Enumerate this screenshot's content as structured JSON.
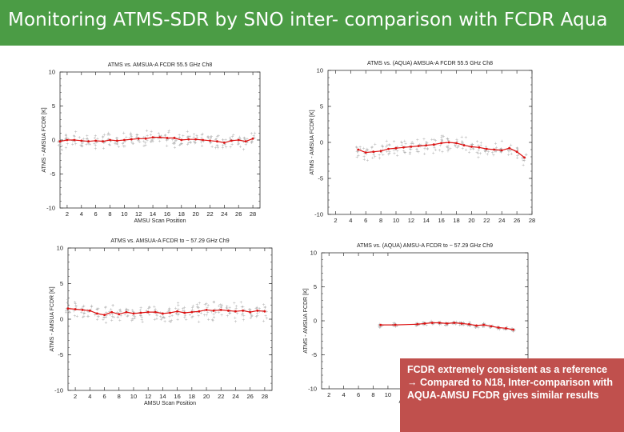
{
  "slide": {
    "title": "Monitoring ATMS-SDR by SNO inter- comparison with FCDR Aqua",
    "callout": "FCDR extremely consistent as a reference → Compared to N18, Inter-comparison with AQUA-AMSU FCDR gives similar results"
  },
  "colors": {
    "title_bg": "#4b9c45",
    "callout_bg": "#c0504d",
    "mean_line": "#dd1111",
    "scatter": "#b0b0b0"
  },
  "chart_data": [
    {
      "type": "line",
      "title": "ATMS  vs. AMSUA-A FCDR 55.5 GHz Ch8",
      "xlabel": "AMSU Scan Position",
      "ylabel": "ATMS - AMSUA FCDR [K]",
      "xlim": [
        1,
        29
      ],
      "ylim": [
        -10,
        10
      ],
      "xticks": [
        2,
        4,
        6,
        8,
        10,
        12,
        14,
        16,
        18,
        20,
        22,
        24,
        26,
        28
      ],
      "yticks": [
        10,
        5,
        0,
        -5,
        -10
      ],
      "x": [
        1,
        2,
        3,
        4,
        5,
        6,
        7,
        8,
        9,
        10,
        11,
        12,
        13,
        14,
        15,
        16,
        17,
        18,
        19,
        20,
        21,
        22,
        23,
        24,
        25,
        26,
        27,
        28
      ],
      "mean": [
        -0.2,
        0.0,
        0.0,
        -0.1,
        -0.2,
        -0.1,
        -0.2,
        0.0,
        -0.1,
        0.0,
        0.1,
        0.2,
        0.2,
        0.4,
        0.4,
        0.3,
        0.3,
        0.0,
        0.1,
        0.1,
        0.0,
        -0.1,
        -0.2,
        -0.4,
        -0.1,
        0.0,
        -0.2,
        0.2
      ],
      "spread": 1.0
    },
    {
      "type": "line",
      "title": "ATMS  vs. (AQUA) AMSUA-A FCDR 55.5 GHz Ch8",
      "xlabel": "",
      "ylabel": "ATMS - AMSUA FCDR [K]",
      "xlim": [
        1,
        28
      ],
      "ylim": [
        -10,
        10
      ],
      "xticks": [
        2,
        4,
        6,
        8,
        10,
        12,
        14,
        16,
        18,
        20,
        22,
        24,
        26,
        28
      ],
      "yticks": [
        10,
        5,
        0,
        -5,
        -10
      ],
      "x": [
        5,
        6,
        7,
        8,
        9,
        10,
        11,
        12,
        13,
        14,
        15,
        16,
        17,
        18,
        19,
        20,
        21,
        22,
        23,
        24,
        25,
        26,
        27
      ],
      "mean": [
        -1.0,
        -1.4,
        -1.3,
        -1.2,
        -0.9,
        -0.8,
        -0.7,
        -0.6,
        -0.5,
        -0.4,
        -0.3,
        -0.1,
        0.0,
        -0.1,
        -0.4,
        -0.6,
        -0.7,
        -0.9,
        -1.0,
        -1.1,
        -0.8,
        -1.3,
        -2.1
      ],
      "spread": 1.0
    },
    {
      "type": "line",
      "title": "ATMS  vs. AMSUA-A FCDR to ~ 57.29 GHz Ch9",
      "xlabel": "AMSU Scan Position",
      "ylabel": "ATMS - AMSUA FCDR [K]",
      "xlim": [
        1,
        29
      ],
      "ylim": [
        -10,
        10
      ],
      "xticks": [
        2,
        4,
        6,
        8,
        10,
        12,
        14,
        16,
        18,
        20,
        22,
        24,
        26,
        28
      ],
      "yticks": [
        10,
        5,
        0,
        -5,
        -10
      ],
      "x": [
        1,
        2,
        3,
        4,
        5,
        6,
        7,
        8,
        9,
        10,
        11,
        12,
        13,
        14,
        15,
        16,
        17,
        18,
        19,
        20,
        21,
        22,
        23,
        24,
        25,
        26,
        27,
        28
      ],
      "mean": [
        1.5,
        1.4,
        1.3,
        1.2,
        0.8,
        0.6,
        1.0,
        0.7,
        1.0,
        0.8,
        0.9,
        1.0,
        1.0,
        0.8,
        0.9,
        1.1,
        0.9,
        1.0,
        1.1,
        1.3,
        1.2,
        1.3,
        1.2,
        1.1,
        1.2,
        1.0,
        1.2,
        1.1
      ],
      "spread": 1.1
    },
    {
      "type": "line",
      "title": "ATMS  vs. (AQUA) AMSU-A FCDR to ~ 57.29 GHz Ch9",
      "xlabel": "AMSU Scan Position",
      "ylabel": "ATMS - AMSUA FCDR [K]",
      "xlim": [
        1,
        29
      ],
      "ylim": [
        -10,
        10
      ],
      "xticks": [
        2,
        4,
        6,
        8,
        10
      ],
      "yticks": [
        10,
        5,
        0,
        -5,
        -10
      ],
      "x": [
        9,
        11,
        14,
        15,
        16,
        17,
        18,
        19,
        20,
        21,
        22,
        23,
        24,
        25,
        26,
        27
      ],
      "mean": [
        -0.6,
        -0.6,
        -0.5,
        -0.4,
        -0.3,
        -0.3,
        -0.4,
        -0.3,
        -0.4,
        -0.5,
        -0.7,
        -0.6,
        -0.8,
        -1.0,
        -1.1,
        -1.3
      ],
      "spread": 0.25
    }
  ]
}
